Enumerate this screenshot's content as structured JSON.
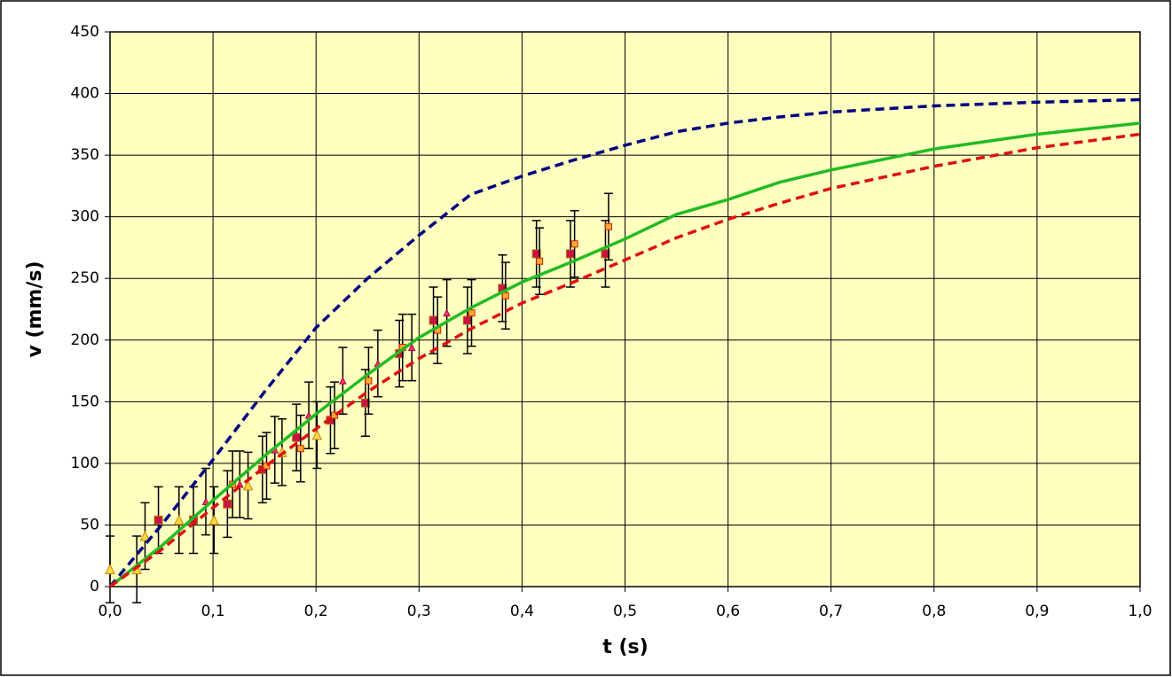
{
  "chart_data": {
    "type": "line",
    "x_label": "t  (s)",
    "y_label": "v  (mm/s)",
    "xlim": [
      0,
      1
    ],
    "ylim": [
      0,
      450
    ],
    "xticks": [
      {
        "value": 0,
        "label": "0,0"
      },
      {
        "value": 0.1,
        "label": "0,1"
      },
      {
        "value": 0.2,
        "label": "0,2"
      },
      {
        "value": 0.3,
        "label": "0,3"
      },
      {
        "value": 0.4,
        "label": "0,4"
      },
      {
        "value": 0.5,
        "label": "0,5"
      },
      {
        "value": 0.6,
        "label": "0,6"
      },
      {
        "value": 0.7,
        "label": "0,7"
      },
      {
        "value": 0.8,
        "label": "0,8"
      },
      {
        "value": 0.9,
        "label": "0,9"
      },
      {
        "value": 1,
        "label": "1,0"
      }
    ],
    "yticks": [
      0,
      50,
      100,
      150,
      200,
      250,
      300,
      350,
      400,
      450
    ],
    "grid": true,
    "background": "#ffffc0",
    "series": [
      {
        "type": "line",
        "dash": true,
        "color": "#000080",
        "x": [
          0,
          0.05,
          0.1,
          0.15,
          0.2,
          0.25,
          0.3,
          0.35,
          0.4,
          0.45,
          0.5,
          0.55,
          0.6,
          0.65,
          0.7,
          0.8,
          0.9,
          1.0
        ],
        "values": [
          0,
          50,
          103,
          158,
          210,
          250,
          285,
          318,
          333,
          346,
          358,
          369,
          376,
          381,
          385,
          390,
          393,
          395
        ]
      },
      {
        "type": "line",
        "dash": false,
        "color": "#22bb22",
        "x": [
          0,
          0.05,
          0.1,
          0.15,
          0.2,
          0.25,
          0.3,
          0.35,
          0.4,
          0.45,
          0.5,
          0.55,
          0.6,
          0.65,
          0.7,
          0.8,
          0.9,
          1.0
        ],
        "values": [
          0,
          33,
          70,
          106,
          140,
          172,
          202,
          226,
          247,
          264,
          282,
          302,
          314,
          328,
          338,
          355,
          367,
          376
        ]
      },
      {
        "type": "line",
        "dash": true,
        "color": "#dd1111",
        "x": [
          0,
          0.05,
          0.1,
          0.15,
          0.2,
          0.25,
          0.3,
          0.35,
          0.4,
          0.45,
          0.5,
          0.55,
          0.6,
          0.65,
          0.7,
          0.8,
          0.9,
          1.0
        ],
        "values": [
          0,
          30,
          64,
          97,
          128,
          158,
          185,
          209,
          230,
          247,
          265,
          283,
          298,
          311,
          323,
          341,
          356,
          367
        ]
      },
      {
        "type": "scatter",
        "marker": "square",
        "size": 9,
        "color": "#cc1144",
        "stroke": "#aa7700",
        "error": 27,
        "x": [
          0.047,
          0.081,
          0.114,
          0.148,
          0.181,
          0.214,
          0.248,
          0.281,
          0.314,
          0.347,
          0.381,
          0.414,
          0.447,
          0.481
        ],
        "values": [
          54,
          54,
          67,
          95,
          121,
          135,
          149,
          189,
          216,
          216,
          242,
          270,
          270,
          270
        ]
      },
      {
        "type": "scatter",
        "marker": "square",
        "size": 7,
        "color": "#ffaa33",
        "stroke": "#cc2200",
        "error": 27,
        "x": [
          0.119,
          0.152,
          0.185,
          0.218,
          0.251,
          0.284,
          0.318,
          0.351,
          0.384,
          0.417,
          0.451,
          0.484
        ],
        "values": [
          83,
          98,
          112,
          139,
          167,
          194,
          208,
          222,
          236,
          264,
          278,
          292
        ]
      },
      {
        "type": "scatter",
        "marker": "triangle",
        "size": 10,
        "color": "#ffdd44",
        "stroke": "#d08000",
        "error": 27,
        "x": [
          0.0,
          0.026,
          0.034,
          0.067,
          0.101,
          0.134,
          0.167,
          0.201
        ],
        "values": [
          14,
          14,
          41,
          54,
          54,
          82,
          109,
          123
        ]
      },
      {
        "type": "scatter",
        "marker": "triangle",
        "size": 7,
        "color": "#ff3377",
        "stroke": "#aa0033",
        "error": 27,
        "x": [
          0.093,
          0.126,
          0.16,
          0.193,
          0.226,
          0.26,
          0.293,
          0.327
        ],
        "values": [
          69,
          83,
          111,
          139,
          167,
          181,
          194,
          222
        ]
      }
    ]
  }
}
